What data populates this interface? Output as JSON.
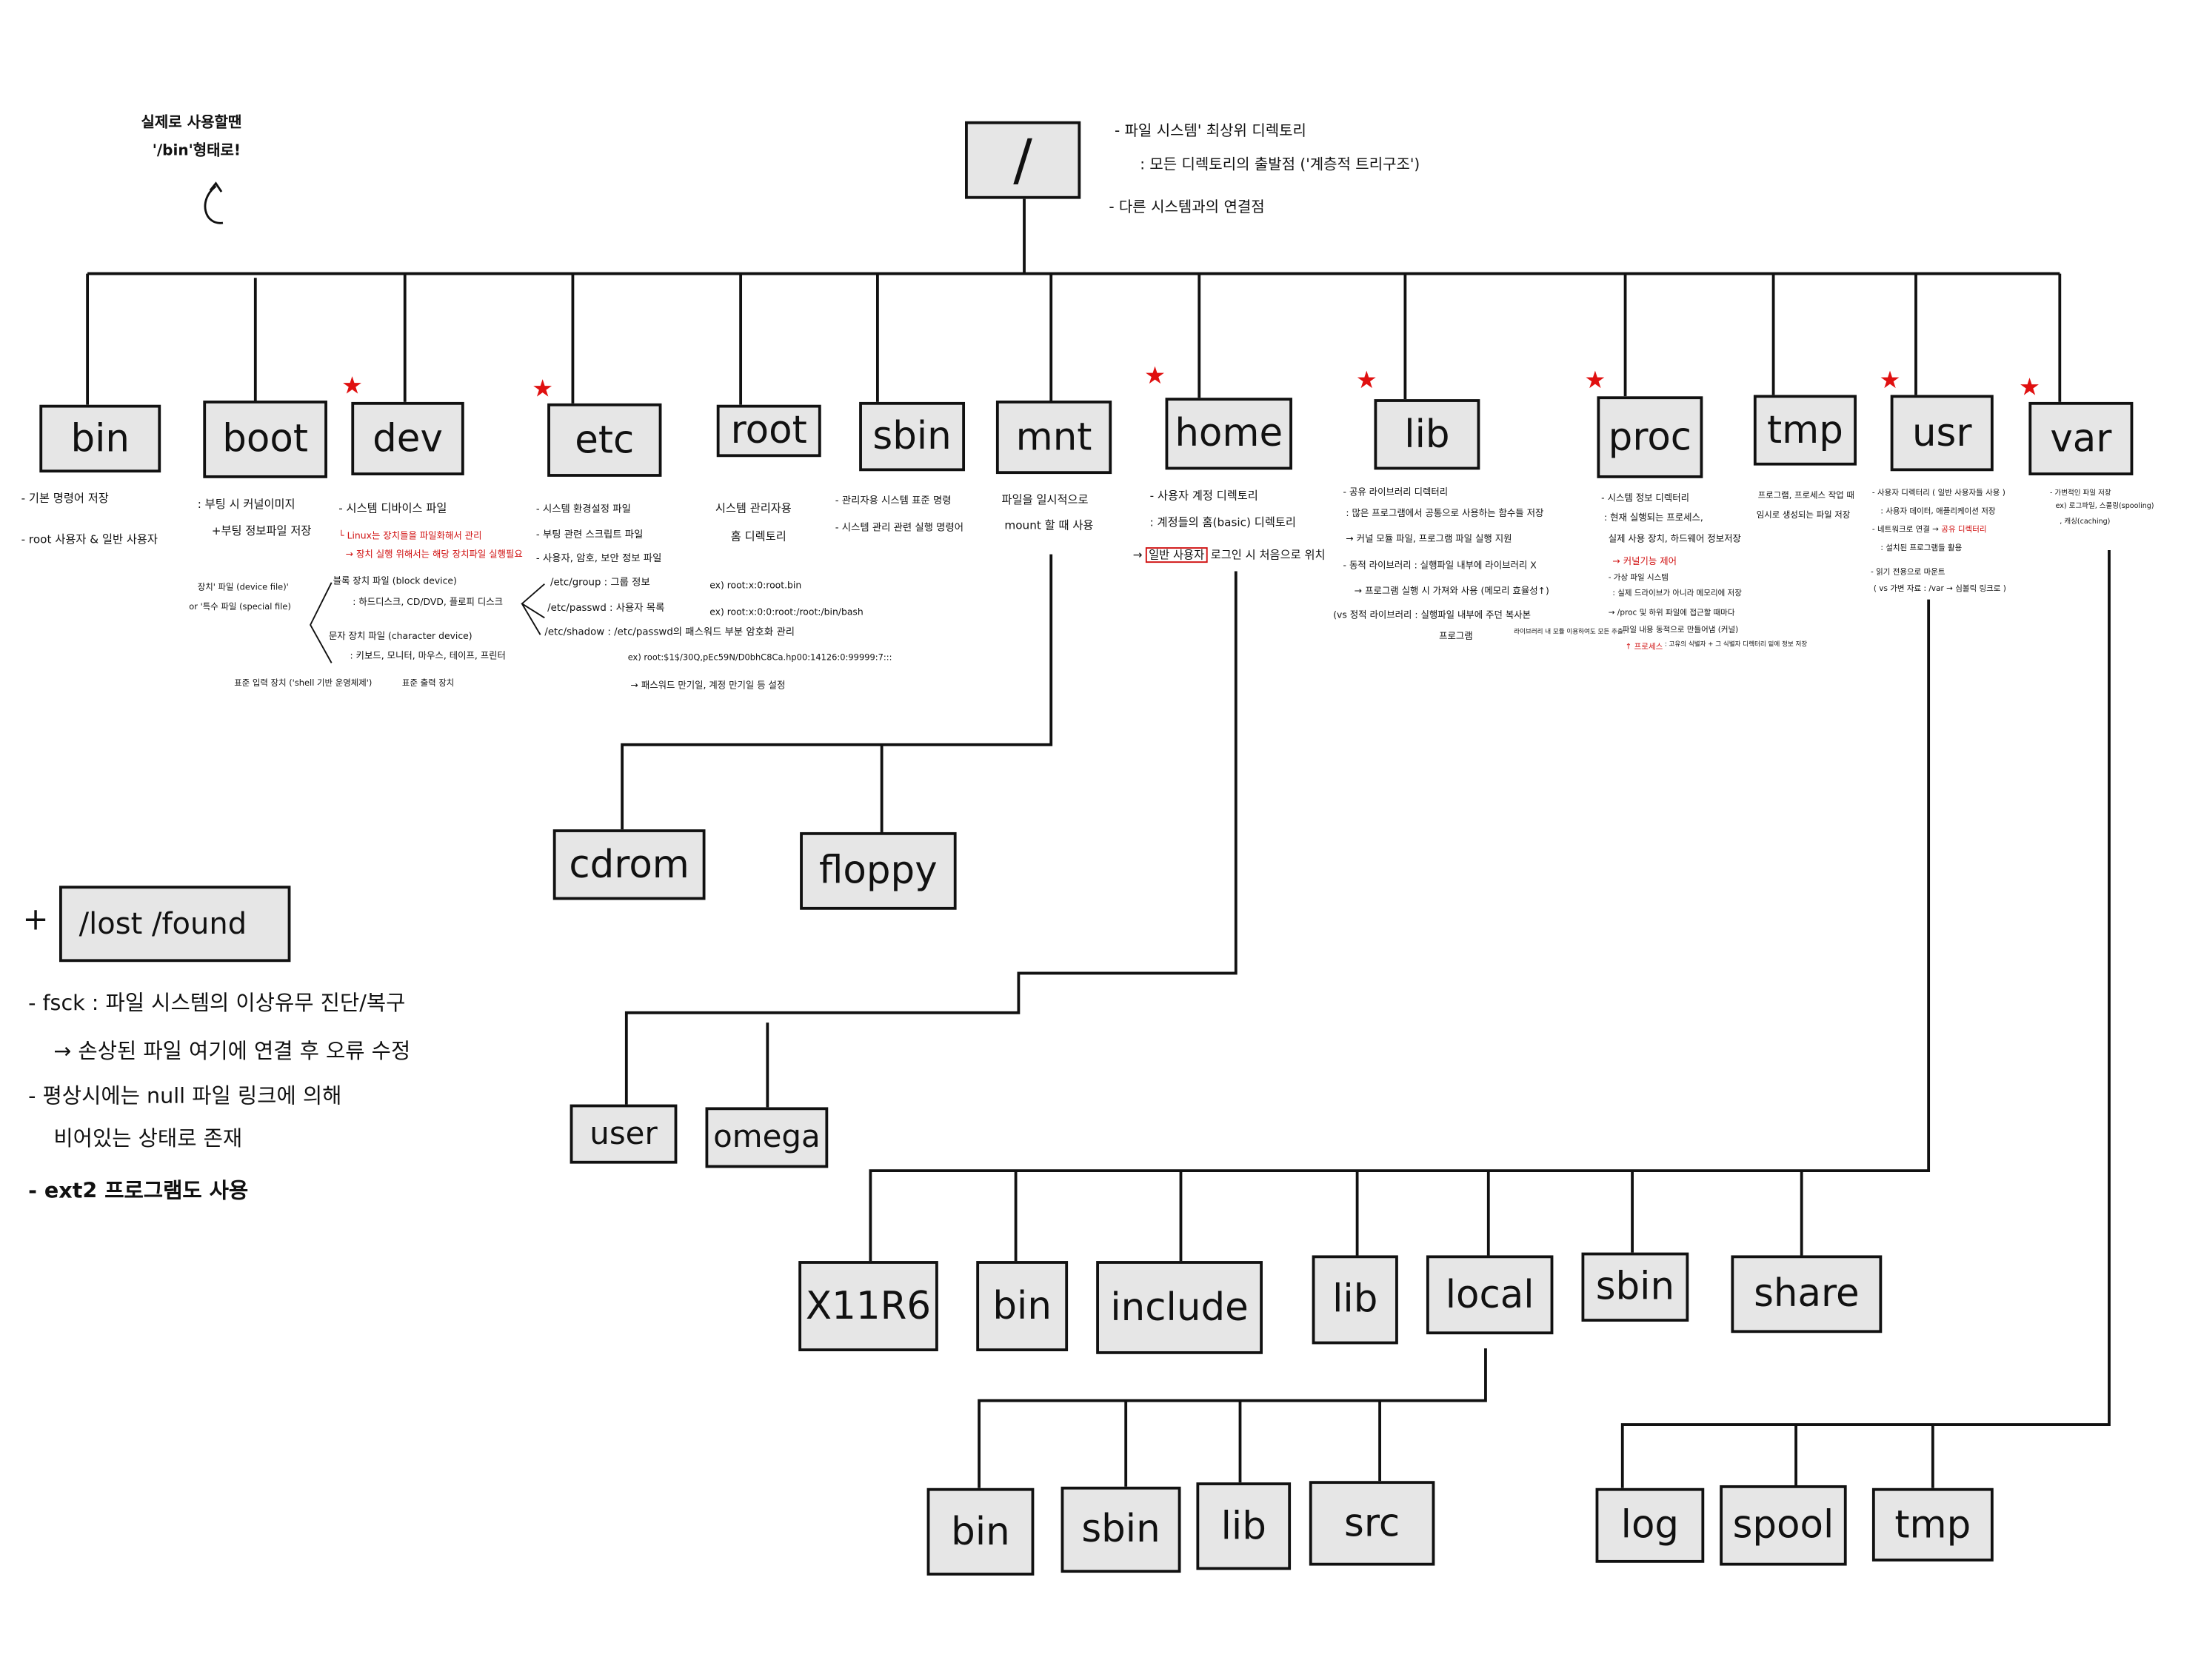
{
  "top_note": [
    "실제로 사용할땐",
    "'/bin'형태로!"
  ],
  "root": {
    "label": "/",
    "notes": [
      "- 파일 시스템' 최상위 디렉토리",
      ": 모든 디렉토리의 출발점 ('계층적 트리구조')",
      "- 다른 시스템과의 연결점"
    ]
  },
  "level1": [
    {
      "label": "bin",
      "notes": [
        "- 기본 명령어 저장",
        "- root 사용자 & 일반 사용자"
      ]
    },
    {
      "label": "boot",
      "notes": [
        ": 부팅 시 커널이미지",
        "+부팅 정보파일 저장"
      ]
    },
    {
      "label": "dev",
      "starred": true,
      "notes": [
        "- 시스템 디바이스 파일",
        "└ Linux는 장치들을 파일화해서 관리",
        "→ 장치 실행 위해서는 해당 장치파일 실행필요",
        "장치' 파일 (device file)'",
        "or '특수 파일 (special file)",
        "블록 장치 파일 (block device)",
        ": 하드디스크, CD/DVD, 플로피 디스크",
        "문자 장치 파일 (character device)",
        ": 키보드, 모니터, 마우스, 테이프, 프린터",
        "표준 입력 장치 ('shell 기반 운영체제')",
        "표준 출력 장치"
      ]
    },
    {
      "label": "etc",
      "starred": true,
      "notes": [
        "- 시스템 환경설정 파일",
        "- 부팅 관련 스크립트 파일",
        "- 사용자, 암호, 보안 정보 파일",
        "/etc/group  : 그룹 정보",
        "/etc/passwd : 사용자 목록",
        "/etc/shadow : /etc/passwd의 패스워드 부분 암호화 관리",
        "ex) root:x:0:root.bin",
        "ex) root:x:0:0:root:/root:/bin/bash",
        "ex) root:$1$/30Q,pEc59N/D0bhC8Ca.hp00:14126:0:99999:7:::",
        "→ 패스워드 만기일, 계정 만기일 등 설정"
      ]
    },
    {
      "label": "root",
      "notes": [
        "시스템 관리자용",
        "홈 디렉토리"
      ]
    },
    {
      "label": "sbin",
      "notes": [
        "- 관리자용 시스템 표준 명령",
        "- 시스템 관리 관련 실행 명령어"
      ]
    },
    {
      "label": "mnt",
      "notes": [
        "파일을 일시적으로",
        "mount 할 때 사용"
      ]
    },
    {
      "label": "home",
      "starred": true,
      "notes": [
        "- 사용자 계정 디렉토리",
        ": 계정들의 홈(basic) 디렉토리",
        "→",
        "일반 사용자",
        "로그인 시 처음으로 위치"
      ]
    },
    {
      "label": "lib",
      "starred": true,
      "notes": [
        "- 공유 라이브러리 디렉터리",
        ": 많은 프로그램에서 공통으로 사용하는 함수들 저장",
        "→ 커널 모듈 파일, 프로그램 파일 실행 지원",
        "- 동적 라이브러리 : 실행파일 내부에 라이브러리 X",
        "→ 프로그램 실행 시 가져와 사용 (메모리 효율성↑)",
        "(vs 정적 라이브러리 : 실행파일 내부에 주던 복사본",
        "프로그램",
        "라이브러리 내 모듈 이용하여도 모든 추출."
      ]
    },
    {
      "label": "proc",
      "starred": true,
      "notes": [
        "- 시스템 정보 디렉터리",
        ": 현재 실행되는 프로세스,",
        "실제 사용 장치, 하드웨어 정보저장",
        "→ 커널기능 제어",
        "- 가상 파일 시스템",
        ": 실제 드라이브가 아니라 메모리에 저장",
        "→ /proc 및 하위 파일에 접근할 때마다",
        "파일 내용 동적으로 만들어냄 (커널)",
        "↑ 프로세스",
        ": 고유의 식별자 + 그 식별자 디렉터리 밑에 정보 저장"
      ]
    },
    {
      "label": "tmp",
      "notes": [
        "프로그램, 프로세스 작업 때",
        "임시로 생성되는 파일 저장"
      ]
    },
    {
      "label": "usr",
      "starred": true,
      "notes": [
        "- 사용자 디렉터리 ( 일반 사용자들 사용 )",
        ": 사용자 데이터, 애플리케이션 저장",
        "- 네트워크로 연결 →",
        "공유 디렉터리",
        ": 설치된 프로그램들 활용",
        "- 읽기 전용으로 마운트",
        "( vs 가변 자료 : /var → 심볼릭 링크로 )"
      ]
    },
    {
      "label": "var",
      "starred": true,
      "notes": [
        "- 가변적인 파일 저장",
        "ex) 로그파일, 스풀링(spooling)",
        ", 캐싱(caching)"
      ]
    }
  ],
  "mnt_children": [
    "cdrom",
    "floppy"
  ],
  "home_children": [
    "user",
    "omega"
  ],
  "usr_children": [
    "X11R6",
    "bin",
    "include",
    "lib",
    "local",
    "sbin",
    "share"
  ],
  "local_children": [
    "bin",
    "sbin",
    "lib",
    "src"
  ],
  "var_children": [
    "log",
    "spool",
    "tmp"
  ],
  "lost_found": {
    "prefix": "+",
    "label": "/lost /found",
    "notes": [
      "- fsck : 파일 시스템의 이상유무 진단/복구",
      "→ 손상된 파일 여기에 연결 후 오류 수정",
      "- 평상시에는 null 파일 링크에 의해",
      "비어있는 상태로 존재",
      "- ext2 프로그램도 사용"
    ]
  },
  "colors": {
    "box_fill": "#e6e6e6",
    "ink": "#111111",
    "highlight": "#d01010"
  }
}
